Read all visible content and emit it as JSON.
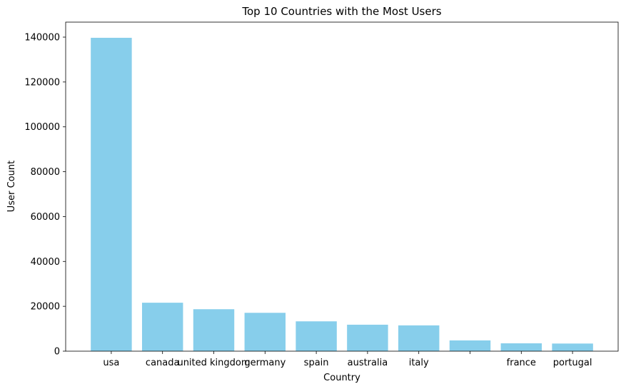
{
  "chart_data": {
    "type": "bar",
    "title": "Top 10 Countries with the Most Users",
    "xlabel": "Country",
    "ylabel": "User Count",
    "categories": [
      "usa",
      "canada",
      "united kingdom",
      "germany",
      "spain",
      "australia",
      "italy",
      "",
      "france",
      "portugal"
    ],
    "values": [
      139700,
      21600,
      18700,
      17100,
      13300,
      11800,
      11500,
      4800,
      3500,
      3400
    ],
    "ylim": [
      0,
      146685
    ],
    "yticks": [
      0,
      20000,
      40000,
      60000,
      80000,
      100000,
      120000,
      140000
    ],
    "grid": false,
    "legend": "none",
    "colors": {
      "bar": "#87ceeb",
      "axis": "#000000"
    }
  }
}
